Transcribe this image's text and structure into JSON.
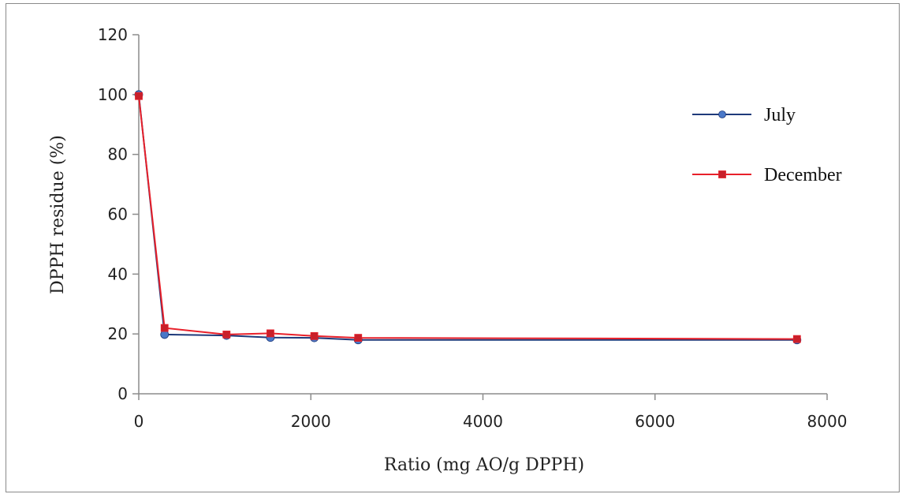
{
  "chart_data": {
    "type": "line",
    "xlabel": "Ratio (mg AO/g DPPH)",
    "ylabel": "DPPH residue (%)",
    "xlim": [
      0,
      8000
    ],
    "ylim": [
      0,
      120
    ],
    "xticks": [
      0,
      2000,
      4000,
      6000,
      8000
    ],
    "yticks": [
      0,
      20,
      40,
      60,
      80,
      100,
      120
    ],
    "grid": false,
    "legend_position": "right",
    "series": [
      {
        "name": "July",
        "color": "#1f3a7a",
        "marker_color": "#4a78c8",
        "marker": "circle",
        "x": [
          0,
          300,
          1020,
          1530,
          2040,
          2550,
          7650
        ],
        "y": [
          100,
          19.8,
          19.5,
          18.8,
          18.7,
          18.0,
          18.0
        ]
      },
      {
        "name": "December",
        "color": "#e8202a",
        "marker_color": "#c8202a",
        "marker": "square",
        "x": [
          0,
          300,
          1020,
          1530,
          2040,
          2550,
          7650
        ],
        "y": [
          99.5,
          22.0,
          19.8,
          20.2,
          19.3,
          18.7,
          18.3
        ]
      }
    ]
  }
}
